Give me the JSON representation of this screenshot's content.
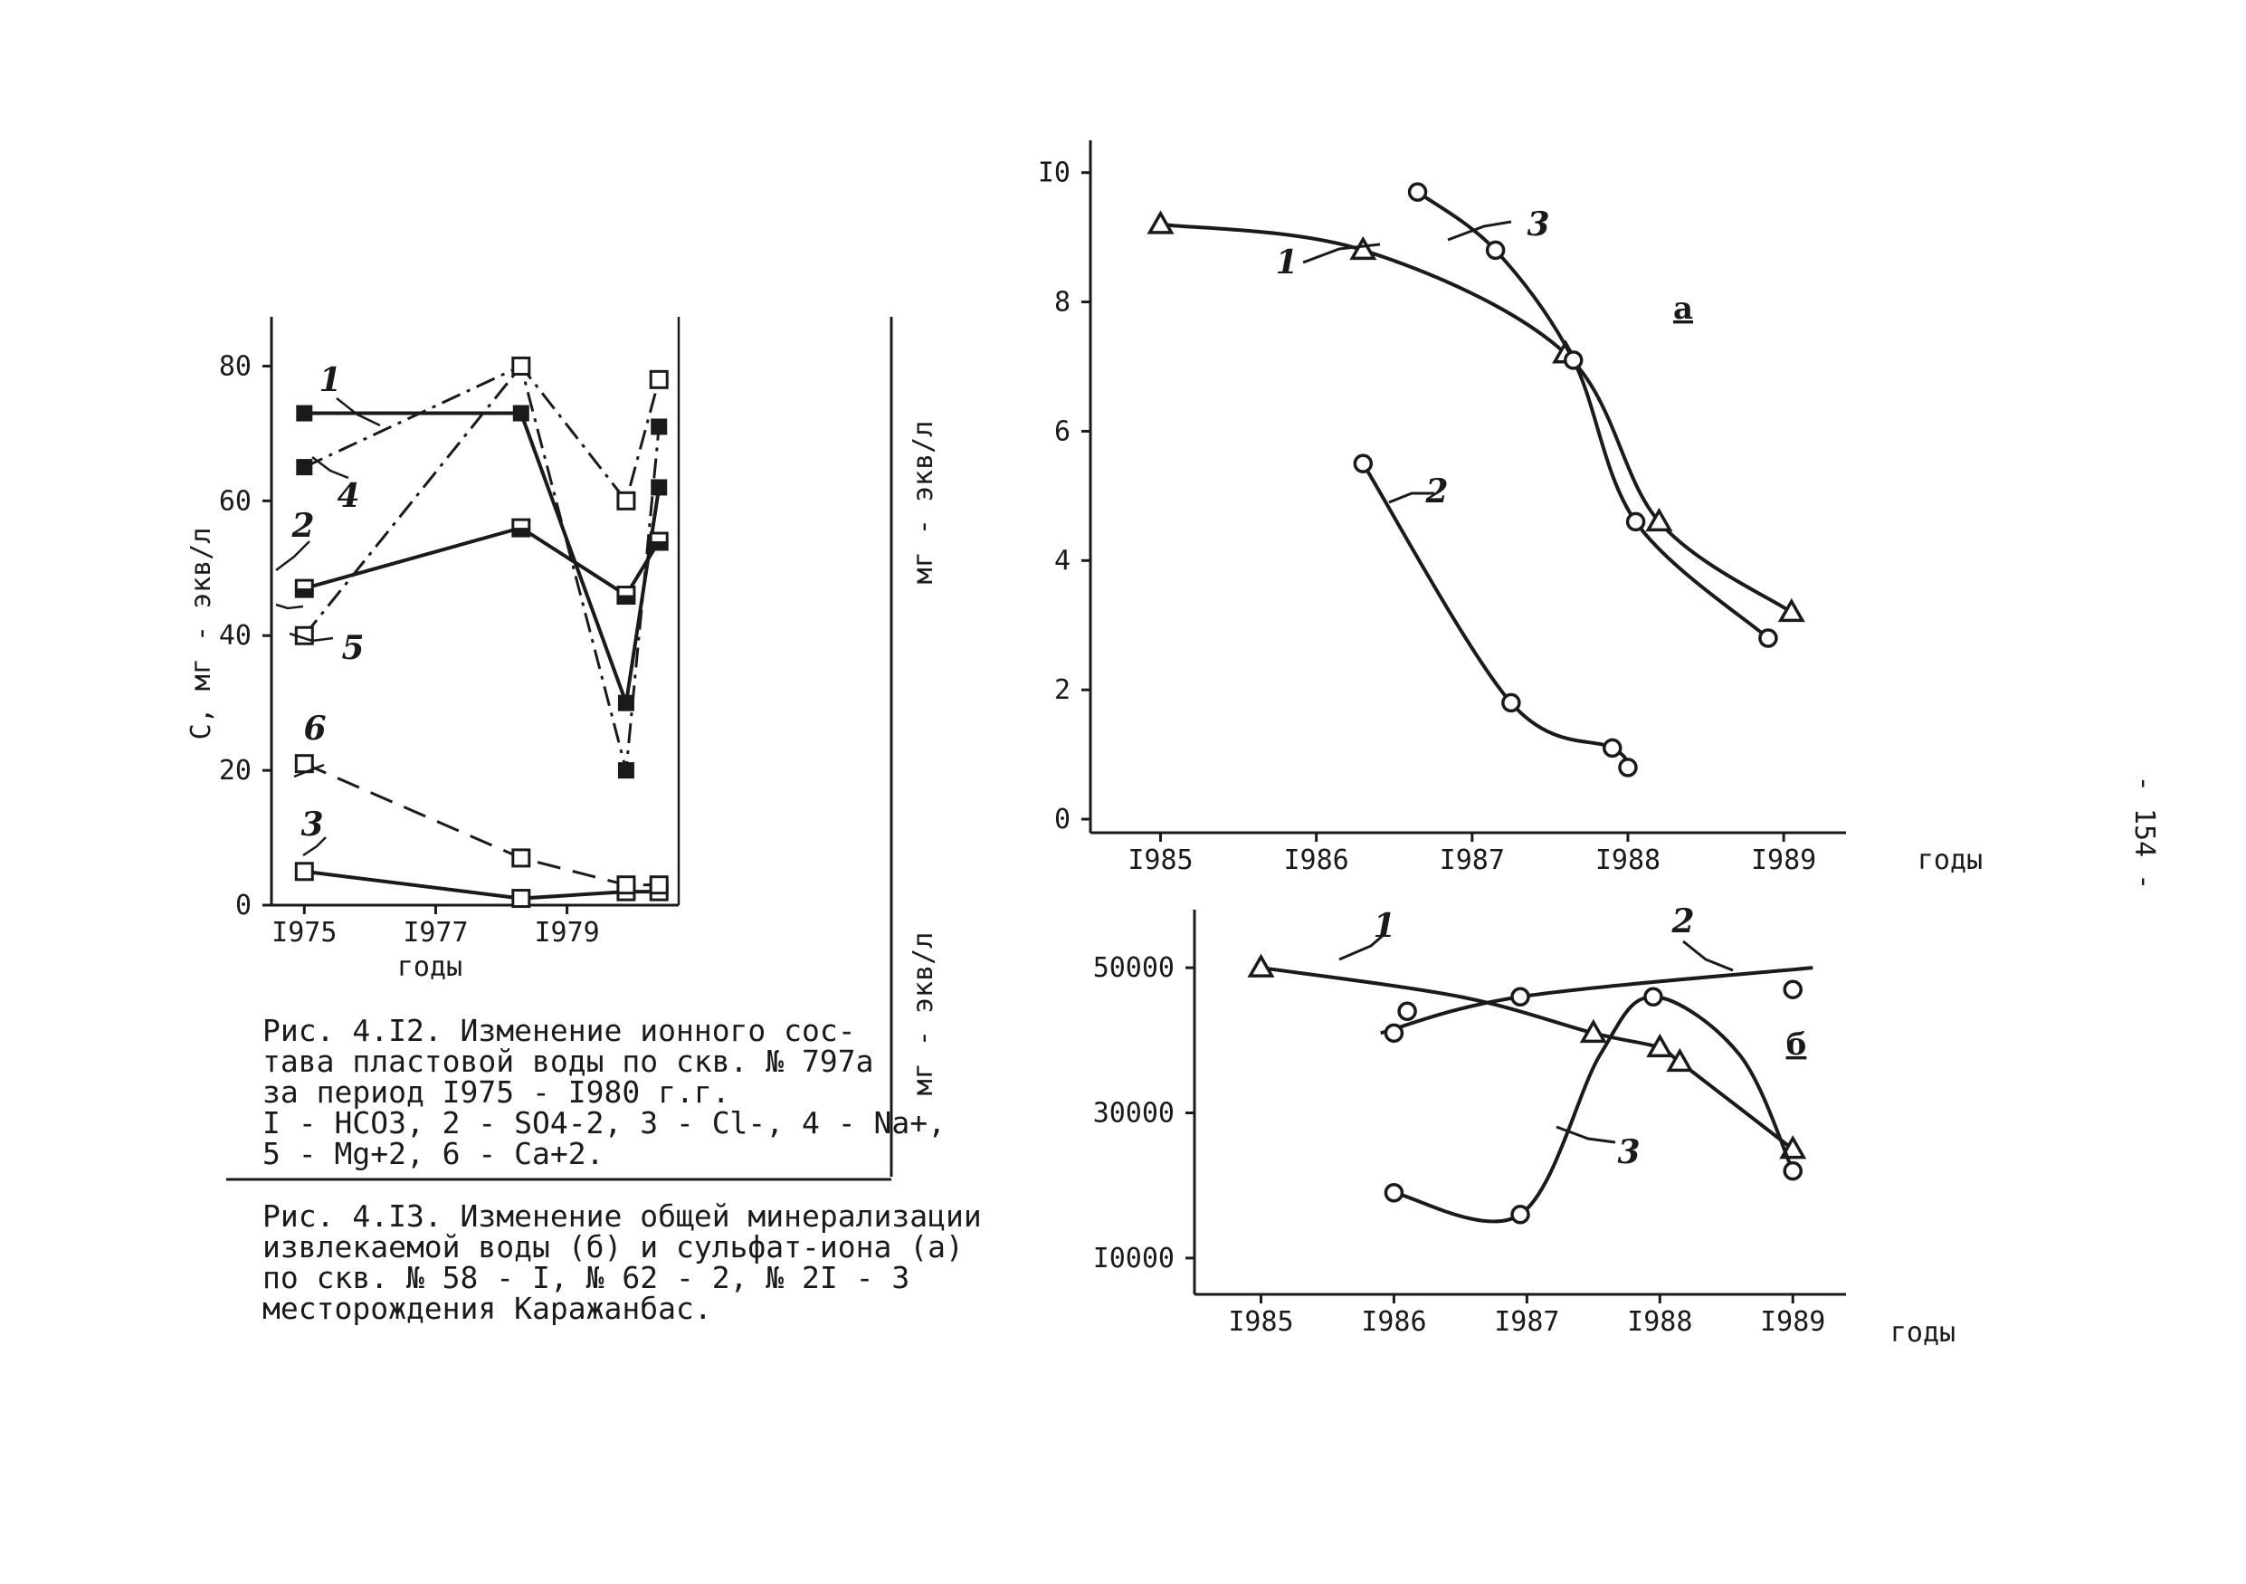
{
  "page_number": "- 154 -",
  "chart_data": [
    {
      "id": "fig412",
      "type": "line",
      "title": "",
      "xlabel": "годы",
      "ylabel": "С, мг - экв/л",
      "x_ticks": [
        "I975",
        "I977",
        "I979"
      ],
      "y_ticks": [
        "0",
        "20",
        "40",
        "60",
        "80"
      ],
      "ylim": [
        0,
        90
      ],
      "xlim": [
        1974.5,
        1980.7
      ],
      "grid": false,
      "series": [
        {
          "name": "1",
          "x": [
            1975,
            1978.3,
            1979.9,
            1980.4
          ],
          "values": [
            73,
            73,
            30,
            62
          ],
          "marker": "filled-square",
          "dash": "solid"
        },
        {
          "name": "2",
          "x": [
            1975,
            1978.3,
            1979.9,
            1980.4
          ],
          "values": [
            47,
            56,
            46,
            54
          ],
          "marker": "half-square",
          "dash": "solid"
        },
        {
          "name": "3",
          "x": [
            1975,
            1978.3,
            1979.9,
            1980.4
          ],
          "values": [
            5,
            1,
            2,
            2
          ],
          "marker": "square",
          "dash": "solid"
        },
        {
          "name": "4",
          "x": [
            1975,
            1978.3,
            1979.9,
            1980.4
          ],
          "values": [
            65,
            80,
            20,
            71
          ],
          "marker": "filled-square",
          "dash": "dashdot"
        },
        {
          "name": "5",
          "x": [
            1975,
            1978.3,
            1979.9,
            1980.4
          ],
          "values": [
            40,
            80,
            60,
            78
          ],
          "marker": "square",
          "dash": "dashdot"
        },
        {
          "name": "6",
          "x": [
            1975,
            1978.3,
            1979.9,
            1980.4
          ],
          "values": [
            21,
            7,
            3,
            3
          ],
          "marker": "square",
          "dash": "dashed"
        }
      ],
      "caption_lines": [
        "Рис. 4.I2. Изменение ионного сос-",
        "тава пластовой воды по скв. № 797а",
        "за период I975 - I980 г.г.",
        "I - HCO3, 2 - SO4-2, 3 - Cl-, 4 - Na+,",
        "5 - Mg+2, 6 - Ca+2."
      ]
    },
    {
      "id": "fig413a",
      "type": "line",
      "panel_label": "а",
      "xlabel": "годы",
      "ylabel": "мг - экв/л",
      "x_ticks": [
        "I985",
        "I986",
        "I987",
        "I988",
        "I989"
      ],
      "y_ticks": [
        "0",
        "2",
        "4",
        "6",
        "8",
        "I0"
      ],
      "ylim": [
        0,
        10.5
      ],
      "xlim": [
        1984.55,
        1989.4
      ],
      "grid": false,
      "series": [
        {
          "name": "1",
          "x": [
            1985.0,
            1986.3,
            1987.6,
            1988.2,
            1989.05
          ],
          "values": [
            9.2,
            8.8,
            7.2,
            4.6,
            3.2
          ],
          "marker": "triangle"
        },
        {
          "name": "2",
          "x": [
            1986.3,
            1987.25,
            1987.9,
            1988.0
          ],
          "values": [
            5.5,
            1.8,
            1.1,
            0.8
          ],
          "marker": "circle"
        },
        {
          "name": "3",
          "x": [
            1986.65,
            1987.15,
            1987.65,
            1988.05,
            1988.9
          ],
          "values": [
            9.7,
            8.8,
            7.1,
            4.6,
            2.8
          ],
          "marker": "circle"
        }
      ]
    },
    {
      "id": "fig413b",
      "type": "line",
      "panel_label": "б",
      "xlabel": "годы",
      "ylabel": "мг - экв/л",
      "x_ticks": [
        "I985",
        "I986",
        "I987",
        "I988",
        "I989"
      ],
      "y_ticks": [
        "I0000",
        "30000",
        "50000"
      ],
      "ylim": [
        5000,
        58000
      ],
      "xlim": [
        1984.5,
        1989.4
      ],
      "grid": false,
      "series": [
        {
          "name": "1",
          "x": [
            1985.0,
            1986.5,
            1987.5,
            1988.0,
            1988.15,
            1989.0
          ],
          "values": [
            50000,
            46000,
            41000,
            39000,
            37000,
            25000
          ],
          "marker": "triangle"
        },
        {
          "name": "2",
          "x": [
            1986.0,
            1986.1,
            1986.95,
            1989.15
          ],
          "values": [
            41000,
            44000,
            46000,
            50000
          ],
          "marker": "circle"
        },
        {
          "name": "3",
          "x": [
            1986.0,
            1986.95,
            1987.95,
            1989.0,
            1989.0
          ],
          "values": [
            19000,
            16000,
            46000,
            22000,
            47000
          ],
          "marker": "circle"
        }
      ]
    }
  ],
  "caption_413_lines": [
    "Рис. 4.I3. Изменение общей минерализации",
    "извлекаемой воды (б) и сульфат-иона (а)",
    "по скв. № 58 - I, № 62 - 2, № 2I - 3",
    "месторождения Каражанбас."
  ]
}
